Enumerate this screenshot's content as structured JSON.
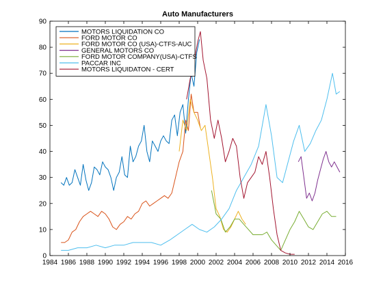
{
  "chart_data": {
    "type": "line",
    "title": "Auto Manufacturers",
    "xlabel": "",
    "ylabel": "",
    "xlim": [
      1984,
      2016
    ],
    "ylim": [
      0,
      90
    ],
    "x_ticks": [
      1984,
      1986,
      1988,
      1990,
      1992,
      1994,
      1996,
      1998,
      2000,
      2002,
      2004,
      2006,
      2008,
      2010,
      2012,
      2014,
      2016
    ],
    "y_ticks": [
      0,
      10,
      20,
      30,
      40,
      50,
      60,
      70,
      80,
      90
    ],
    "grid": false,
    "legend_position": "top-left",
    "series": [
      {
        "name": "MOTORS LIQUIDATION CO",
        "color": "#0072bd",
        "x": [
          1985.2,
          1985.5,
          1985.8,
          1986.1,
          1986.4,
          1986.7,
          1987.0,
          1987.3,
          1987.6,
          1987.9,
          1988.2,
          1988.5,
          1988.8,
          1989.1,
          1989.4,
          1989.7,
          1990.0,
          1990.3,
          1990.6,
          1990.9,
          1991.2,
          1991.5,
          1991.8,
          1992.1,
          1992.4,
          1992.7,
          1993.0,
          1993.3,
          1993.6,
          1993.9,
          1994.2,
          1994.5,
          1994.8,
          1995.1,
          1995.4,
          1995.7,
          1996.0,
          1996.3,
          1996.6,
          1996.9,
          1997.2,
          1997.5,
          1997.8,
          1998.1,
          1998.4,
          1998.7,
          1999.0,
          1999.3,
          1999.6,
          1999.9,
          2000.2
        ],
        "y": [
          28,
          27,
          30,
          27,
          28,
          33,
          30,
          27,
          35,
          29,
          25,
          28,
          34,
          33,
          31,
          36,
          34,
          33,
          30,
          25,
          30,
          32,
          38,
          31,
          30,
          42,
          36,
          38,
          42,
          44,
          50,
          40,
          36,
          44,
          42,
          40,
          44,
          46,
          44,
          43,
          52,
          54,
          46,
          55,
          58,
          47,
          60,
          70,
          65,
          78,
          83
        ]
      },
      {
        "name": "FORD MOTOR CO",
        "color": "#d95319",
        "x": [
          1985.2,
          1985.6,
          1986.0,
          1986.4,
          1986.8,
          1987.2,
          1987.6,
          1988.0,
          1988.4,
          1988.8,
          1989.2,
          1989.6,
          1990.0,
          1990.4,
          1990.8,
          1991.2,
          1991.6,
          1992.0,
          1992.4,
          1992.8,
          1993.2,
          1993.6,
          1994.0,
          1994.4,
          1994.8,
          1995.2,
          1995.6,
          1996.0,
          1996.4,
          1996.8,
          1997.2,
          1997.6,
          1998.0,
          1998.4,
          1998.7,
          1999.0,
          1999.3,
          1999.6,
          2000.0,
          2000.3
        ],
        "y": [
          5,
          5,
          6,
          9,
          10,
          13,
          15,
          16,
          17,
          16,
          15,
          17,
          16,
          14,
          11,
          10,
          12,
          13,
          15,
          14,
          16,
          17,
          20,
          21,
          19,
          20,
          21,
          22,
          23,
          22,
          24,
          30,
          36,
          40,
          52,
          48,
          62,
          55,
          55,
          49
        ]
      },
      {
        "name": "FORD MOTOR CO (USA)-CTFS-AUC",
        "color": "#edb120",
        "x": [
          1998.0,
          1998.4,
          1998.8,
          1999.2,
          1999.6,
          2000.0,
          2000.4,
          2000.8,
          2001.2,
          2001.6,
          2002.0,
          2002.4,
          2002.8,
          2003.2,
          2003.6,
          2004.0,
          2004.4,
          2004.8,
          2005.2
        ],
        "y": [
          40,
          52,
          48,
          60,
          55,
          52,
          48,
          50,
          40,
          30,
          18,
          15,
          10,
          9,
          11,
          14,
          17,
          14,
          12
        ]
      },
      {
        "name": "GENERAL MOTORS CO",
        "color": "#7e2f8e",
        "x": [
          2010.9,
          2011.2,
          2011.5,
          2011.8,
          2012.1,
          2012.4,
          2012.7,
          2013.0,
          2013.3,
          2013.6,
          2013.9,
          2014.2,
          2014.5,
          2014.8,
          2015.1,
          2015.4
        ],
        "y": [
          36,
          38,
          30,
          22,
          24,
          21,
          24,
          29,
          33,
          37,
          40,
          36,
          34,
          36,
          34,
          32
        ]
      },
      {
        "name": "FORD MOTOR COMPANY(USA)-CTFS",
        "color": "#77ac30",
        "x": [
          2001.5,
          2002.0,
          2002.5,
          2003.0,
          2003.5,
          2004.0,
          2004.5,
          2005.0,
          2005.5,
          2006.0,
          2006.5,
          2007.0,
          2007.5,
          2008.0,
          2008.5,
          2009.0,
          2009.5,
          2010.0,
          2010.5,
          2011.0,
          2011.5,
          2012.0,
          2012.5,
          2013.0,
          2013.5,
          2014.0,
          2014.5,
          2015.0
        ],
        "y": [
          25,
          16,
          14,
          9,
          11,
          14,
          14,
          12,
          10,
          8,
          8,
          8,
          9,
          6,
          4,
          2,
          6,
          10,
          13,
          17,
          14,
          11,
          10,
          13,
          16,
          17,
          15,
          15
        ]
      },
      {
        "name": "PACCAR INC",
        "color": "#4dbeee",
        "x": [
          1985.2,
          1986.0,
          1987.0,
          1988.0,
          1989.0,
          1990.0,
          1991.0,
          1992.0,
          1993.0,
          1994.0,
          1995.0,
          1996.0,
          1997.0,
          1997.8,
          1998.6,
          1999.4,
          2000.2,
          2001.0,
          2001.8,
          2002.6,
          2003.4,
          2004.2,
          2005.0,
          2005.8,
          2006.6,
          2007.4,
          2008.0,
          2008.6,
          2009.2,
          2009.8,
          2010.4,
          2011.0,
          2011.6,
          2012.2,
          2012.8,
          2013.4,
          2014.0,
          2014.6,
          2015.0,
          2015.4
        ],
        "y": [
          2,
          2,
          3,
          3,
          4,
          3,
          4,
          4,
          5,
          5,
          5,
          4,
          6,
          8,
          10,
          12,
          10,
          9,
          11,
          14,
          18,
          25,
          30,
          35,
          42,
          58,
          46,
          30,
          28,
          36,
          44,
          50,
          40,
          43,
          48,
          52,
          60,
          70,
          62,
          63
        ]
      },
      {
        "name": "MOTORS LIQUIDATON - CERT",
        "color": "#a2142f",
        "x": [
          1998.8,
          1999.2,
          1999.6,
          2000.0,
          2000.3,
          2000.6,
          2001.0,
          2001.4,
          2001.8,
          2002.2,
          2002.6,
          2003.0,
          2003.4,
          2003.8,
          2004.2,
          2004.6,
          2005.0,
          2005.4,
          2005.8,
          2006.2,
          2006.6,
          2007.0,
          2007.4,
          2007.8,
          2008.2,
          2008.6,
          2009.0,
          2009.5,
          2010.0,
          2010.5
        ],
        "y": [
          60,
          68,
          74,
          82,
          86,
          75,
          68,
          52,
          45,
          52,
          45,
          36,
          40,
          45,
          42,
          30,
          22,
          28,
          30,
          32,
          38,
          35,
          40,
          30,
          18,
          8,
          2,
          1,
          0.5,
          0.5
        ]
      }
    ]
  }
}
